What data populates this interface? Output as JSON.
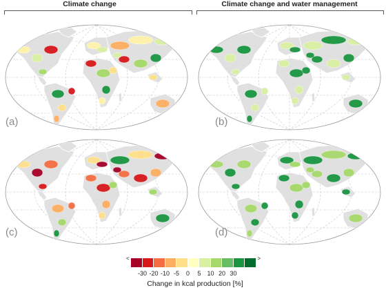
{
  "headers": {
    "left": "Climate change",
    "right": "Climate change and water management"
  },
  "panels": [
    {
      "label": "(a)",
      "scenario": "Climate change",
      "dominant_class": "mixed, mostly slight losses",
      "colors": [
        "#fff2a8",
        "#fee08b",
        "#a6d96a",
        "#d9f0a3",
        "#fdae61",
        "#1a9641",
        "#d7191c"
      ]
    },
    {
      "label": "(b)",
      "scenario": "Climate change and water management",
      "dominant_class": "mostly gains",
      "colors": [
        "#a6d96a",
        "#1a9641",
        "#66bd63",
        "#006d2c",
        "#d9f0a3",
        "#fee08b"
      ]
    },
    {
      "label": "(c)",
      "scenario": "Climate change",
      "dominant_class": "mostly losses",
      "colors": [
        "#fdae61",
        "#f46d43",
        "#fee08b",
        "#a6d96a",
        "#d7191c",
        "#a50026",
        "#1a9641"
      ]
    },
    {
      "label": "(d)",
      "scenario": "Climate change and water management",
      "dominant_class": "strong gains",
      "colors": [
        "#1a9641",
        "#006d2c",
        "#66bd63",
        "#a6d96a",
        "#d9f0a3",
        "#fee08b"
      ]
    }
  ],
  "legend": {
    "title": "Change in kcal production [%]",
    "ticks": [
      "<",
      "-30",
      "-20",
      "-10",
      "-5",
      "0",
      "5",
      "10",
      "20",
      "30",
      ">"
    ],
    "colors": [
      "#a50026",
      "#d7191c",
      "#f46d43",
      "#fdae61",
      "#fee08b",
      "#ffffbf",
      "#d9f0a3",
      "#a6d96a",
      "#66bd63",
      "#1a9641",
      "#006d2c"
    ]
  }
}
